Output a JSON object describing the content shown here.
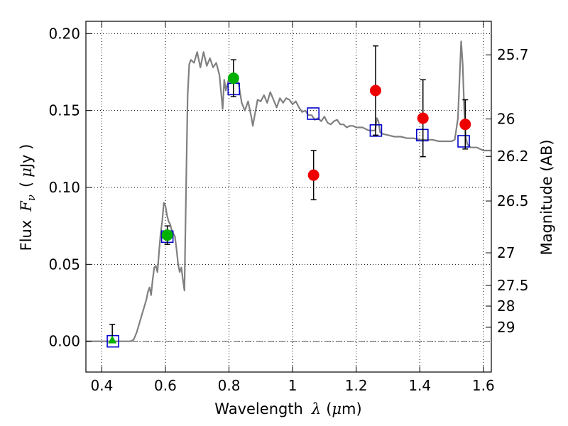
{
  "chart_data": {
    "type": "line",
    "title": "",
    "xlabel": "Wavelength",
    "xlabel_symbol": "λ",
    "xlabel_unit_open": "(",
    "xlabel_unit_mu": "μ",
    "xlabel_unit_rest": "m)",
    "ylabel": "Flux",
    "ylabel_symbol": "F",
    "ylabel_subscript": "ν",
    "ylabel_unit_open": "(",
    "ylabel_unit_mu": "μ",
    "ylabel_unit_rest": "Jy )",
    "y2label": "Magnitude (AB)",
    "xlim": [
      0.35,
      1.625
    ],
    "ylim": [
      -0.02,
      0.208
    ],
    "grid": true,
    "x_ticks": [
      {
        "value": 0.4,
        "label": "0.4"
      },
      {
        "value": 0.6,
        "label": "0.6"
      },
      {
        "value": 0.8,
        "label": "0.8"
      },
      {
        "value": 1.0,
        "label": "1"
      },
      {
        "value": 1.2,
        "label": "1.2"
      },
      {
        "value": 1.4,
        "label": "1.4"
      },
      {
        "value": 1.6,
        "label": "1.6"
      }
    ],
    "y_ticks": [
      {
        "value": 0.0,
        "label": "0.00"
      },
      {
        "value": 0.05,
        "label": "0.05"
      },
      {
        "value": 0.1,
        "label": "0.10"
      },
      {
        "value": 0.15,
        "label": "0.15"
      },
      {
        "value": 0.2,
        "label": "0.20"
      }
    ],
    "y2_ticks": [
      {
        "flux": 0.1862,
        "label": "25.7"
      },
      {
        "flux": 0.1445,
        "label": "26"
      },
      {
        "flux": 0.1202,
        "label": "26.2"
      },
      {
        "flux": 0.0912,
        "label": "26.5"
      },
      {
        "flux": 0.0575,
        "label": "27"
      },
      {
        "flux": 0.0363,
        "label": "27.5"
      },
      {
        "flux": 0.0229,
        "label": "28"
      },
      {
        "flux": 0.0091,
        "label": "29"
      }
    ],
    "zero_line": 0.0,
    "colors": {
      "sed": "#808080",
      "model_square": "#0000cc",
      "detection_optical": "#00b000",
      "detection_nir": "#ee0000",
      "errorbar": "#000000"
    },
    "series": [
      {
        "kind": "sed",
        "points": [
          [
            0.35,
            0.0
          ],
          [
            0.49,
            0.0
          ],
          [
            0.5,
            0.001
          ],
          [
            0.51,
            0.006
          ],
          [
            0.52,
            0.013
          ],
          [
            0.53,
            0.02
          ],
          [
            0.54,
            0.027
          ],
          [
            0.545,
            0.032
          ],
          [
            0.55,
            0.035
          ],
          [
            0.555,
            0.03
          ],
          [
            0.56,
            0.04
          ],
          [
            0.565,
            0.048
          ],
          [
            0.57,
            0.049
          ],
          [
            0.575,
            0.045
          ],
          [
            0.58,
            0.058
          ],
          [
            0.585,
            0.07
          ],
          [
            0.59,
            0.078
          ],
          [
            0.595,
            0.09
          ],
          [
            0.6,
            0.088
          ],
          [
            0.605,
            0.082
          ],
          [
            0.61,
            0.078
          ],
          [
            0.615,
            0.076
          ],
          [
            0.62,
            0.072
          ],
          [
            0.625,
            0.07
          ],
          [
            0.63,
            0.068
          ],
          [
            0.635,
            0.06
          ],
          [
            0.64,
            0.05
          ],
          [
            0.645,
            0.045
          ],
          [
            0.65,
            0.048
          ],
          [
            0.655,
            0.04
          ],
          [
            0.66,
            0.033
          ],
          [
            0.665,
            0.1
          ],
          [
            0.67,
            0.16
          ],
          [
            0.675,
            0.18
          ],
          [
            0.68,
            0.183
          ],
          [
            0.69,
            0.181
          ],
          [
            0.7,
            0.188
          ],
          [
            0.71,
            0.178
          ],
          [
            0.72,
            0.188
          ],
          [
            0.73,
            0.179
          ],
          [
            0.74,
            0.184
          ],
          [
            0.75,
            0.178
          ],
          [
            0.76,
            0.181
          ],
          [
            0.77,
            0.173
          ],
          [
            0.78,
            0.151
          ],
          [
            0.785,
            0.17
          ],
          [
            0.79,
            0.163
          ],
          [
            0.8,
            0.171
          ],
          [
            0.81,
            0.168
          ],
          [
            0.82,
            0.17
          ],
          [
            0.83,
            0.168
          ],
          [
            0.84,
            0.155
          ],
          [
            0.85,
            0.15
          ],
          [
            0.86,
            0.156
          ],
          [
            0.87,
            0.146
          ],
          [
            0.875,
            0.14
          ],
          [
            0.88,
            0.146
          ],
          [
            0.89,
            0.157
          ],
          [
            0.9,
            0.156
          ],
          [
            0.91,
            0.16
          ],
          [
            0.92,
            0.155
          ],
          [
            0.93,
            0.162
          ],
          [
            0.94,
            0.157
          ],
          [
            0.95,
            0.152
          ],
          [
            0.96,
            0.158
          ],
          [
            0.97,
            0.155
          ],
          [
            0.98,
            0.158
          ],
          [
            0.99,
            0.157
          ],
          [
            1.0,
            0.154
          ],
          [
            1.01,
            0.156
          ],
          [
            1.02,
            0.152
          ],
          [
            1.03,
            0.149
          ],
          [
            1.04,
            0.15
          ],
          [
            1.05,
            0.147
          ],
          [
            1.06,
            0.147
          ],
          [
            1.07,
            0.144
          ],
          [
            1.08,
            0.145
          ],
          [
            1.09,
            0.143
          ],
          [
            1.1,
            0.146
          ],
          [
            1.11,
            0.142
          ],
          [
            1.12,
            0.141
          ],
          [
            1.13,
            0.143
          ],
          [
            1.14,
            0.144
          ],
          [
            1.15,
            0.141
          ],
          [
            1.16,
            0.141
          ],
          [
            1.17,
            0.139
          ],
          [
            1.18,
            0.14
          ],
          [
            1.19,
            0.14
          ],
          [
            1.2,
            0.139
          ],
          [
            1.21,
            0.139
          ],
          [
            1.22,
            0.139
          ],
          [
            1.23,
            0.138
          ],
          [
            1.24,
            0.137
          ],
          [
            1.25,
            0.137
          ],
          [
            1.26,
            0.137
          ],
          [
            1.265,
            0.145
          ],
          [
            1.27,
            0.143
          ],
          [
            1.275,
            0.136
          ],
          [
            1.28,
            0.135
          ],
          [
            1.3,
            0.134
          ],
          [
            1.32,
            0.133
          ],
          [
            1.34,
            0.133
          ],
          [
            1.36,
            0.132
          ],
          [
            1.38,
            0.132
          ],
          [
            1.4,
            0.131
          ],
          [
            1.42,
            0.131
          ],
          [
            1.44,
            0.131
          ],
          [
            1.46,
            0.13
          ],
          [
            1.48,
            0.13
          ],
          [
            1.5,
            0.13
          ],
          [
            1.51,
            0.131
          ],
          [
            1.52,
            0.145
          ],
          [
            1.525,
            0.17
          ],
          [
            1.53,
            0.195
          ],
          [
            1.535,
            0.18
          ],
          [
            1.54,
            0.15
          ],
          [
            1.545,
            0.132
          ],
          [
            1.55,
            0.128
          ],
          [
            1.56,
            0.126
          ],
          [
            1.58,
            0.126
          ],
          [
            1.6,
            0.124
          ],
          [
            1.625,
            0.124
          ]
        ]
      },
      {
        "kind": "model_squares",
        "points": [
          [
            0.435,
            0.0
          ],
          [
            0.606,
            0.068
          ],
          [
            0.815,
            0.164
          ],
          [
            1.065,
            0.148
          ],
          [
            1.262,
            0.137
          ],
          [
            1.408,
            0.134
          ],
          [
            1.538,
            0.13
          ]
        ]
      },
      {
        "kind": "detections",
        "points": [
          {
            "x": 0.606,
            "y": 0.069,
            "err": 0.006,
            "band": "optical"
          },
          {
            "x": 0.814,
            "y": 0.171,
            "err": 0.012,
            "band": "optical"
          },
          {
            "x": 1.066,
            "y": 0.108,
            "err": 0.016,
            "band": "nir"
          },
          {
            "x": 1.261,
            "y": 0.163,
            "err": 0.029,
            "band": "nir"
          },
          {
            "x": 1.41,
            "y": 0.145,
            "err": 0.025,
            "band": "nir"
          },
          {
            "x": 1.543,
            "y": 0.141,
            "err": 0.016,
            "band": "nir"
          }
        ]
      },
      {
        "kind": "upper_limit",
        "points": [
          {
            "x": 0.433,
            "y": 0.0,
            "err_up": 0.011
          }
        ]
      }
    ]
  }
}
